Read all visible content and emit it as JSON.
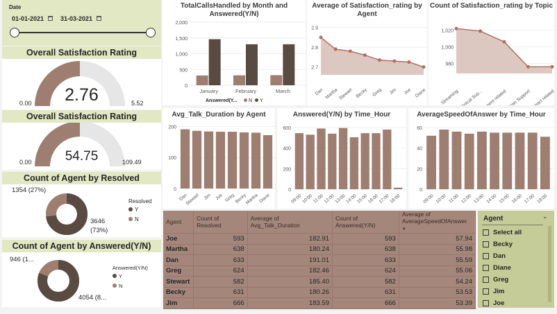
{
  "date_slicer": {
    "title": "Date",
    "start": "01-01-2021",
    "end": "31-03-2021"
  },
  "sat_gauge": {
    "title": "Overall Satisfaction Rating",
    "value": "2.76",
    "min": "0.00",
    "max": "5.52",
    "fill": 0.5
  },
  "speed_gauge": {
    "title": "Overall Satisfaction Rating",
    "value": "54.75",
    "min": "0.00",
    "max": "109.49",
    "fill": 0.5
  },
  "resolved_donut": {
    "title": "Count of Agent by Resolved",
    "legend_title": "Resolved",
    "legend": [
      "Y",
      "N"
    ],
    "label_n": "1354 (27%)",
    "label_y1": "3646",
    "label_y2": "(73%)",
    "share_y": 0.73
  },
  "answered_donut": {
    "title": "Count of Agent by Answered(Y/N)",
    "legend_title": "Answered(Y/N)",
    "legend": [
      "Y",
      "N"
    ],
    "label_n": "946 (1...",
    "label_y": "4054 (8...",
    "share_y": 0.81
  },
  "colors": {
    "dark": "#594a42",
    "mid": "#9e7e70",
    "light": "#c7b2a6",
    "area": "#dcc8c0",
    "header": "#e2e8c4",
    "slicer": "#c5cc98"
  },
  "chart_data": [
    {
      "type": "bar",
      "title": "TotalCallsHandled by Month and Answered(Y/N)",
      "categories": [
        "January",
        "February",
        "March"
      ],
      "legend_title": "Answered(Y...",
      "series": [
        {
          "name": "N",
          "values": [
            310,
            315,
            320
          ]
        },
        {
          "name": "Y",
          "values": [
            1460,
            1300,
            1300
          ]
        }
      ],
      "yticks": [
        "0",
        "500",
        "1,000",
        "1,500",
        "2,000"
      ],
      "ylim": [
        0,
        2000
      ]
    },
    {
      "type": "area",
      "title": "Average of Satisfaction_rating by Agent",
      "categories": [
        "Dan",
        "Martha",
        "Stewart",
        "Becky",
        "Greg",
        "Jim",
        "Joe",
        "Diane"
      ],
      "values": [
        2.85,
        2.79,
        2.78,
        2.76,
        2.735,
        2.73,
        2.725,
        2.7
      ],
      "yticks": [
        "2.7",
        "2.8",
        "2.9"
      ],
      "ylim": [
        2.66,
        2.92
      ]
    },
    {
      "type": "area",
      "title": "Count of Satisfaction_rating by Topic",
      "categories": [
        "Streaming",
        "Technical Sup...",
        "Payment related",
        "Admin Support",
        "Contract related"
      ],
      "values": [
        1022,
        1019,
        1006,
        976,
        976
      ],
      "yticks": [
        "980",
        "1,000",
        "1,020"
      ],
      "ylim": [
        968,
        1028
      ]
    },
    {
      "type": "bar",
      "title": "Avg_Talk_Duration by Agent",
      "categories": [
        "Dan",
        "Stewart",
        "Jim",
        "Joe",
        "Greg",
        "Becky",
        "Martha",
        "Diane"
      ],
      "values": [
        191,
        186,
        184,
        183,
        183,
        181,
        180,
        172
      ],
      "yticks": [
        "0",
        "100",
        "200"
      ],
      "ylim": [
        0,
        210
      ]
    },
    {
      "type": "bar",
      "title": "Answered(Y/N) by Time_Hour",
      "categories": [
        "09:00",
        "10:00",
        "11:00",
        "12:00",
        "13:00",
        "14:00",
        "15:00",
        "16:00",
        "17:00",
        "18:00"
      ],
      "values": [
        545,
        530,
        590,
        540,
        595,
        505,
        545,
        545,
        580,
        15
      ],
      "yticks": [
        "0",
        "200",
        "400",
        "600"
      ],
      "ylim": [
        0,
        640
      ]
    },
    {
      "type": "bar",
      "title": "AverageSpeedOfAnswer by Time_Hour",
      "categories": [
        "09:00",
        "10:00",
        "11:00",
        "12:00",
        "13:00",
        "14:00",
        "15:00",
        "16:00",
        "17:00",
        "18:00"
      ],
      "values": [
        52,
        58,
        56,
        54,
        56,
        55,
        55,
        55,
        55,
        51
      ],
      "yticks": [
        "0",
        "20",
        "40",
        "60"
      ],
      "ylim": [
        0,
        64
      ]
    }
  ],
  "table": {
    "headers": [
      "Agent",
      "Count of Resolved",
      "Average of Avg_Talk_Duration",
      "Count of Answered(Y/N)",
      "Average of AverageSpeedOfAnswer"
    ],
    "rows": [
      [
        "Joe",
        "593",
        "182.91",
        "593",
        "57.94"
      ],
      [
        "Martha",
        "638",
        "180.24",
        "638",
        "55.98"
      ],
      [
        "Dan",
        "633",
        "191.01",
        "633",
        "55.59"
      ],
      [
        "Greg",
        "624",
        "182.46",
        "624",
        "55.06"
      ],
      [
        "Stewart",
        "582",
        "185.40",
        "582",
        "54.24"
      ],
      [
        "Becky",
        "631",
        "180.26",
        "631",
        "53.53"
      ],
      [
        "Jim",
        "666",
        "183.59",
        "666",
        "53.39"
      ]
    ]
  },
  "agent_slicer": {
    "title": "Agent",
    "items": [
      "Select all",
      "Becky",
      "Dan",
      "Diane",
      "Greg",
      "Jim",
      "Joe"
    ]
  }
}
